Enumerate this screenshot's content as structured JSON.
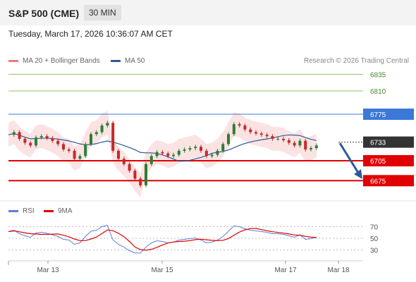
{
  "header": {
    "title": "S&P 500 (CME)",
    "timeframe": "30 MIN"
  },
  "datetime": "Tuesday, March 17, 2026 10:36:07 AM CET",
  "legend": {
    "ma20": {
      "label": "MA 20 + Bollinger Bands",
      "color": "#f07a7a"
    },
    "ma50": {
      "label": "MA 50",
      "color": "#2a5c9a"
    },
    "rsi": {
      "label": "RSI",
      "color": "#5b7fd4"
    },
    "ma9": {
      "label": "9MA",
      "color": "#e00000"
    }
  },
  "copyright": "Research © 2026 Trading Central",
  "chart_data": {
    "type": "line",
    "title": "S&P 500 (CME)",
    "price_levels": [
      {
        "value": 6835,
        "label": "6835",
        "style": "green-line"
      },
      {
        "value": 6810,
        "label": "6810",
        "style": "green-line"
      },
      {
        "value": 6775,
        "label": "6775",
        "style": "blue-resistance"
      },
      {
        "value": 6733,
        "label": "6733",
        "style": "last-price"
      },
      {
        "value": 6705,
        "label": "6705",
        "style": "red-support"
      },
      {
        "value": 6675,
        "label": "6675",
        "style": "red-support"
      }
    ],
    "x_ticks": [
      "Mar 13",
      "Mar 15",
      "Mar 17",
      "Mar 18"
    ],
    "ylim": [
      6650,
      6860
    ],
    "price_x": [
      0,
      2,
      4,
      6,
      8,
      10,
      12,
      14,
      16,
      18,
      20,
      22,
      24,
      26,
      28,
      30,
      32,
      34,
      36,
      38,
      40,
      42,
      44,
      46,
      48,
      50,
      52,
      54,
      56,
      58,
      60,
      62,
      64,
      66,
      68,
      70,
      72,
      74,
      76,
      78,
      80,
      82,
      84,
      86,
      88,
      90,
      92,
      94,
      96,
      98,
      100,
      102,
      104,
      106,
      108,
      110,
      112,
      114,
      116,
      118,
      120,
      122,
      124,
      126,
      128,
      130,
      132,
      134,
      136,
      138,
      140,
      142,
      144,
      146,
      148,
      150,
      152,
      154,
      156,
      158,
      160,
      162,
      164,
      166,
      168
    ],
    "price": [
      6744,
      6748,
      6738,
      6732,
      6728,
      6740,
      6742,
      6739,
      6735,
      6730,
      6722,
      6720,
      6708,
      6712,
      6730,
      6745,
      6748,
      6758,
      6762,
      6720,
      6708,
      6700,
      6690,
      6678,
      6668,
      6700,
      6712,
      6718,
      6716,
      6712,
      6714,
      6720,
      6722,
      6724,
      6726,
      6720,
      6712,
      6714,
      6720,
      6730,
      6745,
      6760,
      6758,
      6752,
      6748,
      6746,
      6744,
      6742,
      6738,
      6738,
      6736,
      6732,
      6728,
      6735,
      6722,
      6724,
      6728,
      6730,
      6733,
      6733,
      6733,
      6733,
      6733,
      6733,
      6733,
      6733,
      6733,
      6733,
      6733,
      6733,
      6733,
      6733,
      6733,
      6733,
      6733,
      6733,
      6733,
      6733,
      6733,
      6733,
      6733,
      6733,
      6733,
      6733,
      6733
    ],
    "rsi_ylim": [
      20,
      80
    ],
    "rsi_ticks": [
      70,
      50,
      30
    ]
  }
}
